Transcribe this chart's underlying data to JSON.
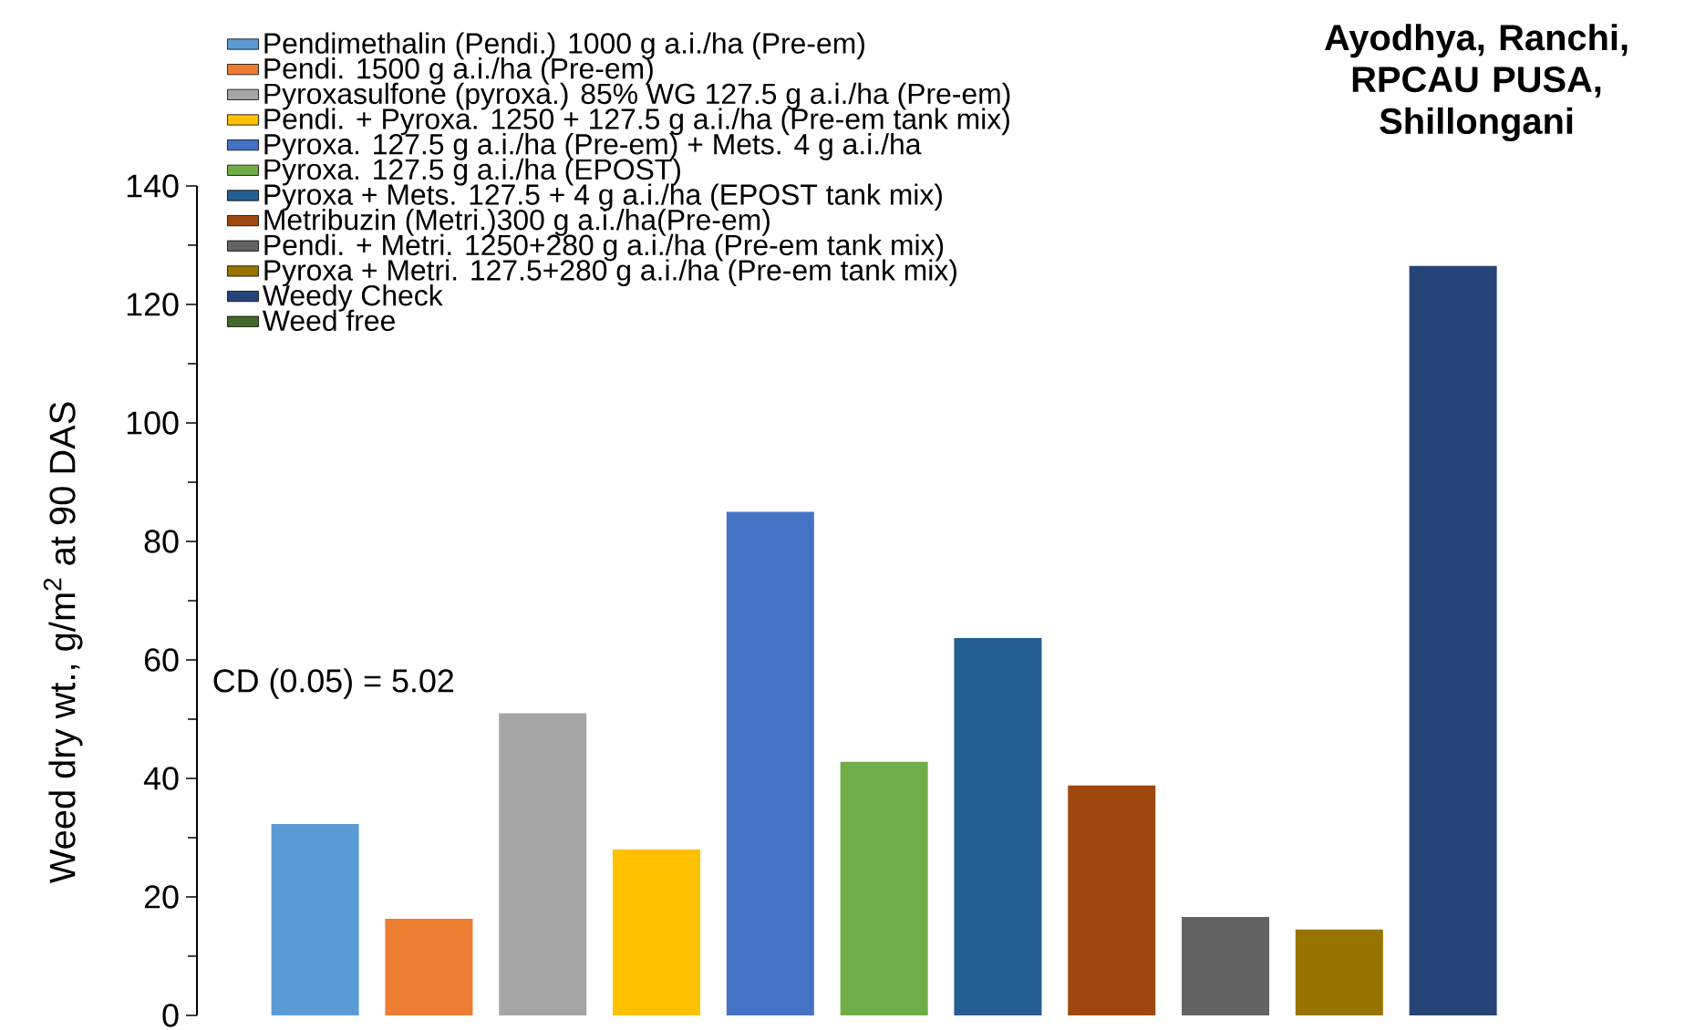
{
  "chart_data": {
    "type": "bar",
    "title": "Ayodhya, Ranchi, RPCAU PUSA, Shillongani",
    "ylabel": "Weed dry wt., g/m$^{2}$ at 90 DAS",
    "annotations": [
      "CD (0.05) = 5.02"
    ],
    "categories": [
      null
    ],
    "series": [
      {
        "name": "Pendimethalin  (Pendi.) 1000 g a.i./ha (Pre-em)",
        "color": "#5b9bd5",
        "values": [
          32.3
        ]
      },
      {
        "name": "Pendi. 1500 g a.i./ha (Pre-em)",
        "color": "#ed7d31",
        "values": [
          16.3
        ]
      },
      {
        "name": "Pyroxasulfone (pyroxa.) 85% WG 127.5 g a.i./ha (Pre-em)",
        "color": "#a5a5a5",
        "values": [
          51
        ]
      },
      {
        "name": "Pendi. + Pyroxa. 1250 + 127.5 g a.i./ha (Pre-em  tank mix)",
        "color": "#ffc000",
        "values": [
          28
        ]
      },
      {
        "name": "Pyroxa. 127.5 g a.i./ha (Pre-em) + Mets. 4 g a.i./ha",
        "color": "#4472c4",
        "values": [
          85
        ]
      },
      {
        "name": "Pyroxa. 127.5 g a.i./ha (EPOST)",
        "color": "#70ad47",
        "values": [
          42.8
        ]
      },
      {
        "name": "Pyroxa + Mets. 127.5 + 4 g a.i./ha (EPOST tank mix)",
        "color": "#255e91",
        "values": [
          63.7
        ]
      },
      {
        "name": "Metribuzin (Metri.)300 g a.i./ha(Pre-em)",
        "color": "#9e480e",
        "values": [
          38.8
        ]
      },
      {
        "name": "Pendi. + Metri. 1250+280 g a.i./ha (Pre-em  tank mix)",
        "color": "#636363",
        "values": [
          16.6
        ]
      },
      {
        "name": "Pyroxa + Metri. 127.5+280 g a.i./ha (Pre-em  tank mix)",
        "color": "#997300",
        "values": [
          14.5
        ]
      },
      {
        "name": "Weedy Check",
        "color": "#264478",
        "values": [
          126.5
        ]
      },
      {
        "name": "Weed free",
        "color": "#43682b",
        "values": [
          0
        ]
      }
    ],
    "ylim": [
      0,
      140
    ],
    "yticks": [
      0,
      20,
      40,
      60,
      80,
      100,
      120,
      140
    ],
    "legend": "top left",
    "tick_labels": "y"
  }
}
